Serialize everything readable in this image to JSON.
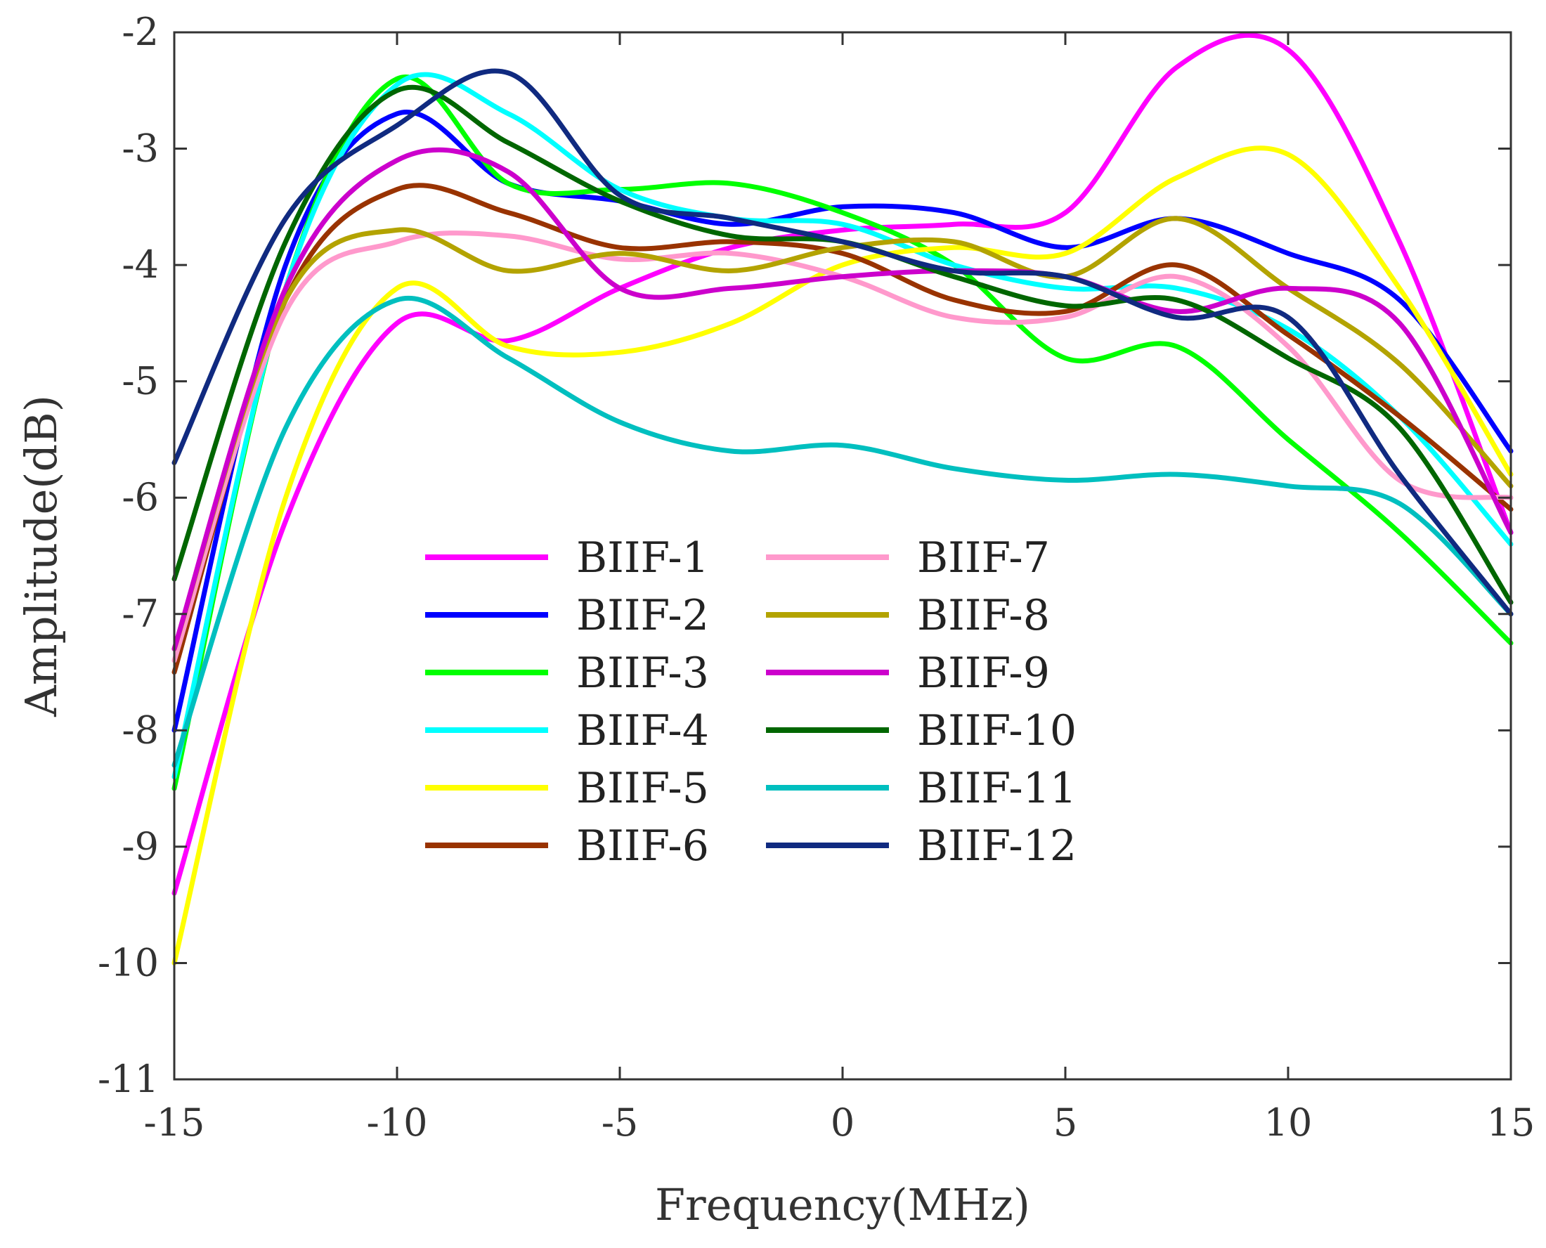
{
  "chart_data": {
    "type": "line",
    "title": "",
    "xlabel": "Frequency(MHz)",
    "ylabel": "Amplitude(dB)",
    "xlim": [
      -15,
      15
    ],
    "ylim": [
      -11,
      -2
    ],
    "xticks": [
      -15,
      -10,
      -5,
      0,
      5,
      10,
      15
    ],
    "yticks": [
      -11,
      -10,
      -9,
      -8,
      -7,
      -6,
      -5,
      -4,
      -3,
      -2
    ],
    "grid": false,
    "legend_position": "center-left",
    "legend_columns": 2,
    "x": [
      -15,
      -12.5,
      -10,
      -7.5,
      -5,
      -2.5,
      0,
      2.5,
      5,
      7.5,
      10,
      12.5,
      15
    ],
    "series": [
      {
        "name": "BIIF-1",
        "color": "#ff00ff",
        "values": [
          -9.4,
          -6.2,
          -4.5,
          -4.65,
          -4.2,
          -3.85,
          -3.7,
          -3.65,
          -3.55,
          -2.3,
          -2.15,
          -3.8,
          -6.3
        ]
      },
      {
        "name": "BIIF-2",
        "color": "#0000ff",
        "values": [
          -8.0,
          -4.0,
          -2.7,
          -3.3,
          -3.45,
          -3.65,
          -3.5,
          -3.55,
          -3.85,
          -3.6,
          -3.9,
          -4.3,
          -5.6
        ]
      },
      {
        "name": "BIIF-3",
        "color": "#00ff00",
        "values": [
          -8.5,
          -4.2,
          -2.4,
          -3.3,
          -3.35,
          -3.3,
          -3.55,
          -4.0,
          -4.8,
          -4.7,
          -5.5,
          -6.3,
          -7.25
        ]
      },
      {
        "name": "BIIF-4",
        "color": "#00ffff",
        "values": [
          -8.4,
          -4.2,
          -2.45,
          -2.7,
          -3.35,
          -3.6,
          -3.65,
          -4.0,
          -4.2,
          -4.2,
          -4.55,
          -5.3,
          -6.4
        ]
      },
      {
        "name": "BIIF-5",
        "color": "#ffff00",
        "values": [
          -10.0,
          -6.0,
          -4.2,
          -4.7,
          -4.75,
          -4.5,
          -4.0,
          -3.85,
          -3.9,
          -3.25,
          -3.05,
          -4.2,
          -5.8
        ]
      },
      {
        "name": "BIIF-6",
        "color": "#993300",
        "values": [
          -7.5,
          -4.3,
          -3.35,
          -3.55,
          -3.85,
          -3.8,
          -3.9,
          -4.3,
          -4.4,
          -4.0,
          -4.6,
          -5.3,
          -6.1
        ]
      },
      {
        "name": "BIIF-7",
        "color": "#ff99cc",
        "values": [
          -7.4,
          -4.4,
          -3.8,
          -3.75,
          -3.95,
          -3.9,
          -4.1,
          -4.45,
          -4.45,
          -4.1,
          -4.7,
          -5.85,
          -6.0
        ]
      },
      {
        "name": "BIIF-8",
        "color": "#b3a300",
        "values": [
          -7.3,
          -4.3,
          -3.7,
          -4.05,
          -3.9,
          -4.05,
          -3.85,
          -3.8,
          -4.1,
          -3.6,
          -4.2,
          -4.85,
          -5.9
        ]
      },
      {
        "name": "BIIF-9",
        "color": "#cc00cc",
        "values": [
          -7.3,
          -4.2,
          -3.1,
          -3.2,
          -4.2,
          -4.2,
          -4.1,
          -4.05,
          -4.1,
          -4.4,
          -4.2,
          -4.5,
          -6.3
        ]
      },
      {
        "name": "BIIF-10",
        "color": "#006600",
        "values": [
          -6.7,
          -3.8,
          -2.5,
          -2.95,
          -3.45,
          -3.75,
          -3.8,
          -4.1,
          -4.35,
          -4.3,
          -4.8,
          -5.4,
          -6.9
        ]
      },
      {
        "name": "BIIF-11",
        "color": "#00bfbf",
        "values": [
          -8.3,
          -5.4,
          -4.3,
          -4.8,
          -5.35,
          -5.6,
          -5.55,
          -5.75,
          -5.85,
          -5.8,
          -5.9,
          -6.05,
          -7.0
        ]
      },
      {
        "name": "BIIF-12",
        "color": "#102a80",
        "values": [
          -5.7,
          -3.6,
          -2.8,
          -2.35,
          -3.4,
          -3.6,
          -3.8,
          -4.05,
          -4.1,
          -4.45,
          -4.45,
          -5.8,
          -7.0
        ]
      }
    ]
  }
}
